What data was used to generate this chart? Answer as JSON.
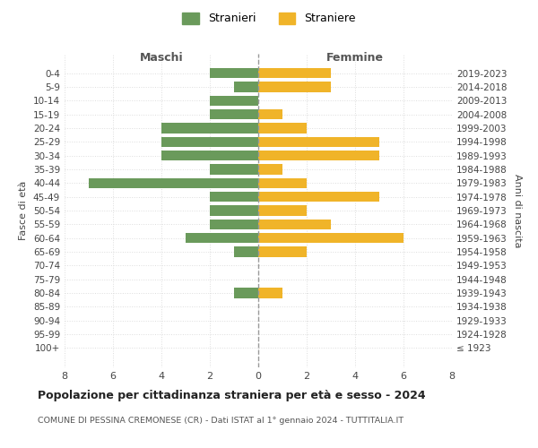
{
  "age_groups": [
    "100+",
    "95-99",
    "90-94",
    "85-89",
    "80-84",
    "75-79",
    "70-74",
    "65-69",
    "60-64",
    "55-59",
    "50-54",
    "45-49",
    "40-44",
    "35-39",
    "30-34",
    "25-29",
    "20-24",
    "15-19",
    "10-14",
    "5-9",
    "0-4"
  ],
  "birth_years": [
    "≤ 1923",
    "1924-1928",
    "1929-1933",
    "1934-1938",
    "1939-1943",
    "1944-1948",
    "1949-1953",
    "1954-1958",
    "1959-1963",
    "1964-1968",
    "1969-1973",
    "1974-1978",
    "1979-1983",
    "1984-1988",
    "1989-1993",
    "1994-1998",
    "1999-2003",
    "2004-2008",
    "2009-2013",
    "2014-2018",
    "2019-2023"
  ],
  "maschi": [
    0,
    0,
    0,
    0,
    1,
    0,
    0,
    1,
    3,
    2,
    2,
    2,
    7,
    2,
    4,
    4,
    4,
    2,
    2,
    1,
    2
  ],
  "femmine": [
    0,
    0,
    0,
    0,
    1,
    0,
    0,
    2,
    6,
    3,
    2,
    5,
    2,
    1,
    5,
    5,
    2,
    1,
    0,
    3,
    3
  ],
  "color_maschi": "#6a9a5b",
  "color_femmine": "#f0b429",
  "title": "Popolazione per cittadinanza straniera per età e sesso - 2024",
  "subtitle": "COMUNE DI PESSINA CREMONESE (CR) - Dati ISTAT al 1° gennaio 2024 - TUTTITALIA.IT",
  "xlabel_left": "Maschi",
  "xlabel_right": "Femmine",
  "ylabel_left": "Fasce di età",
  "ylabel_right": "Anni di nascita",
  "legend_maschi": "Stranieri",
  "legend_femmine": "Straniere",
  "xlim": 8,
  "background_color": "#ffffff",
  "grid_color": "#dddddd",
  "label_color": "#888888"
}
